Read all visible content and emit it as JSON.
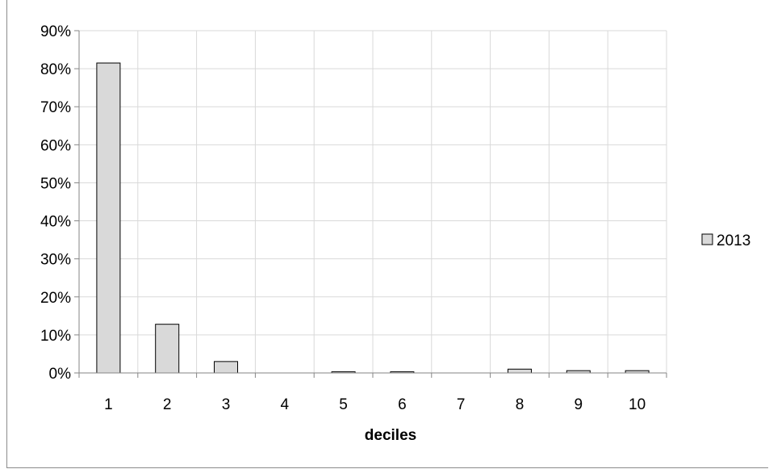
{
  "chart_data": {
    "type": "bar",
    "categories": [
      "1",
      "2",
      "3",
      "4",
      "5",
      "6",
      "7",
      "8",
      "9",
      "10"
    ],
    "series": [
      {
        "name": "2013",
        "values": [
          0.815,
          0.128,
          0.03,
          0.0,
          0.003,
          0.003,
          0.0,
          0.01,
          0.006,
          0.006
        ]
      }
    ],
    "title": "",
    "xlabel": "deciles",
    "ylabel": "",
    "ylim": [
      0,
      0.9
    ],
    "yticks": [
      "0%",
      "10%",
      "20%",
      "30%",
      "40%",
      "50%",
      "60%",
      "70%",
      "80%",
      "90%"
    ],
    "grid": true,
    "legend_position": "right",
    "colors": {
      "bar_fill": "#d9d9d9",
      "bar_stroke": "#000000",
      "grid": "#d9d9d9",
      "axis": "#868686"
    }
  }
}
